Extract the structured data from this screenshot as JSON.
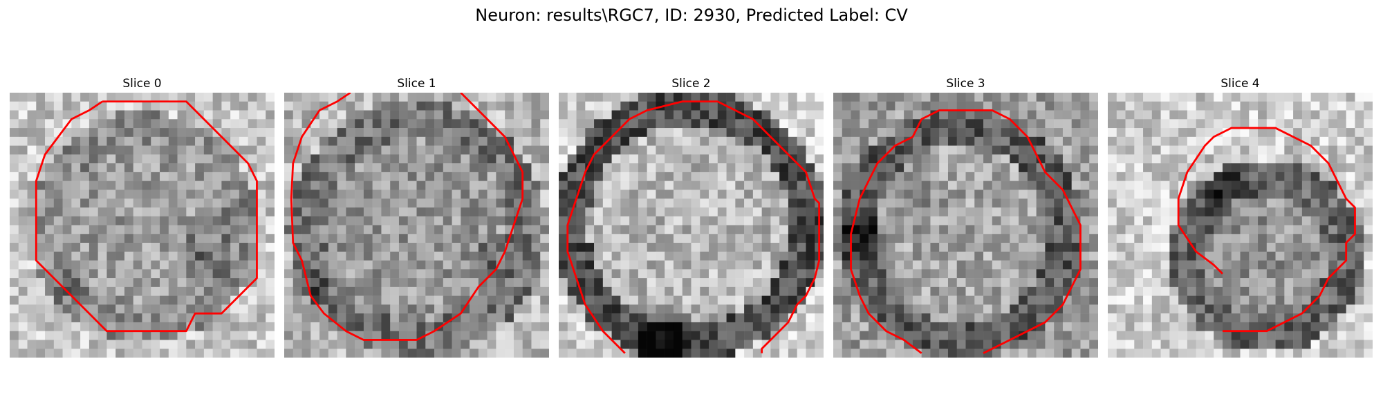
{
  "figure": {
    "title": "Neuron: results\\RGC7, ID: 2930, Predicted Label: CV"
  },
  "panels": [
    {
      "title": "Slice 0"
    },
    {
      "title": "Slice 1"
    },
    {
      "title": "Slice 2"
    },
    {
      "title": "Slice 3"
    },
    {
      "title": "Slice 4"
    }
  ],
  "colors": {
    "contour": "#ff0000",
    "colormap": "gray"
  }
}
